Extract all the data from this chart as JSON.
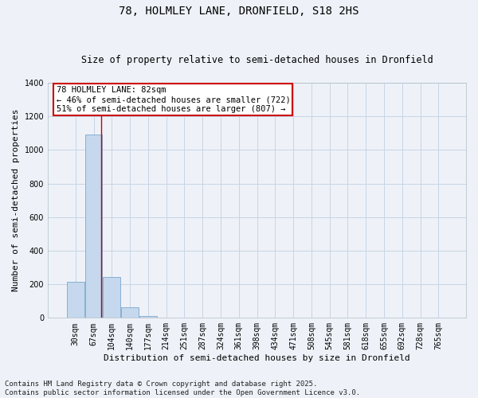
{
  "title_line1": "78, HOLMLEY LANE, DRONFIELD, S18 2HS",
  "title_line2": "Size of property relative to semi-detached houses in Dronfield",
  "xlabel": "Distribution of semi-detached houses by size in Dronfield",
  "ylabel": "Number of semi-detached properties",
  "categories": [
    "30sqm",
    "67sqm",
    "104sqm",
    "140sqm",
    "177sqm",
    "214sqm",
    "251sqm",
    "287sqm",
    "324sqm",
    "361sqm",
    "398sqm",
    "434sqm",
    "471sqm",
    "508sqm",
    "545sqm",
    "581sqm",
    "618sqm",
    "655sqm",
    "692sqm",
    "728sqm",
    "765sqm"
  ],
  "values": [
    215,
    1090,
    245,
    65,
    12,
    3,
    1,
    0,
    0,
    0,
    0,
    0,
    0,
    0,
    0,
    0,
    0,
    0,
    0,
    0,
    0
  ],
  "bar_color": "#c5d8ed",
  "bar_edge_color": "#7aa8cc",
  "grid_color": "#c8d4e4",
  "background_color": "#eef2f8",
  "annotation_line1": "78 HOLMLEY LANE: 82sqm",
  "annotation_line2": "← 46% of semi-detached houses are smaller (722)",
  "annotation_line3": "51% of semi-detached houses are larger (807) →",
  "annotation_box_color": "white",
  "annotation_box_edge_color": "#cc0000",
  "vline_color": "#cc0000",
  "ylim": [
    0,
    1400
  ],
  "yticks": [
    0,
    200,
    400,
    600,
    800,
    1000,
    1200,
    1400
  ],
  "footer_text": "Contains HM Land Registry data © Crown copyright and database right 2025.\nContains public sector information licensed under the Open Government Licence v3.0.",
  "title_fontsize": 10,
  "subtitle_fontsize": 8.5,
  "axis_label_fontsize": 8,
  "tick_fontsize": 7,
  "annotation_fontsize": 7.5,
  "footer_fontsize": 6.5
}
